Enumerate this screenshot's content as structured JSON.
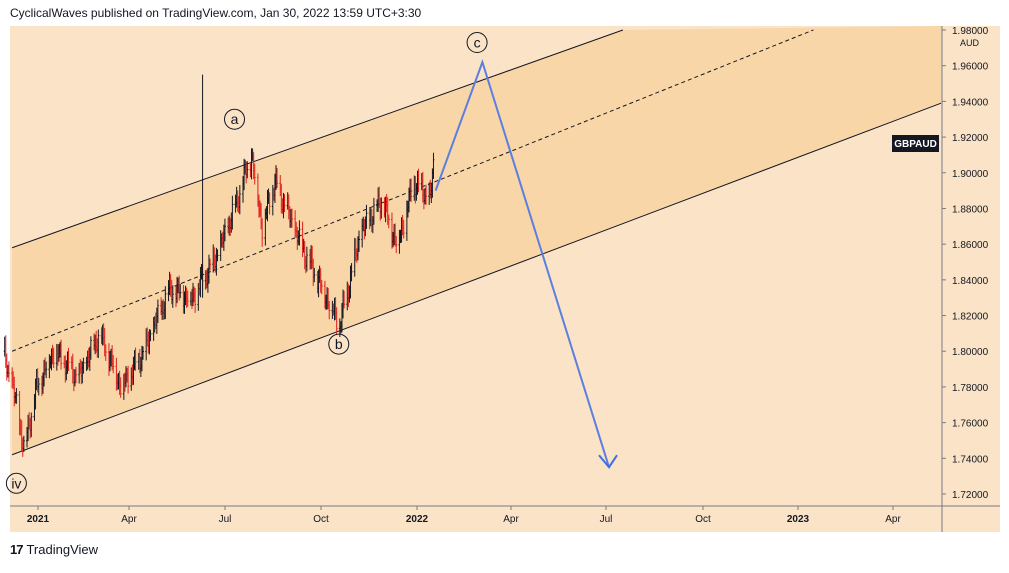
{
  "header": {
    "attribution": "CyclicalWaves published on TradingView.com, Jan 30, 2022 13:59 UTC+3:30"
  },
  "footer": {
    "logo_glyph": "17",
    "brand": "TradingView"
  },
  "colors": {
    "background": "#fbe3c7",
    "channel_fill": "#f9d6a8",
    "bull_candle": "#131722",
    "bear_candle": "#e0201d",
    "projection": "#5b7fe0",
    "projection_arrow": "#3d6ee6"
  },
  "chart_data": {
    "type": "candlestick",
    "symbol_label": "GBPAUD",
    "currency_label": "AUD",
    "ylim": [
      1.71,
      1.98
    ],
    "y_ticks": [
      "1.98000",
      "1.96000",
      "1.94000",
      "1.92000",
      "1.90000",
      "1.88000",
      "1.86000",
      "1.84000",
      "1.82000",
      "1.80000",
      "1.78000",
      "1.76000",
      "1.74000",
      "1.72000"
    ],
    "x_ticks": [
      {
        "label": "2021",
        "bold": true
      },
      {
        "label": "Apr",
        "bold": false
      },
      {
        "label": "Jul",
        "bold": false
      },
      {
        "label": "Oct",
        "bold": false
      },
      {
        "label": "2022",
        "bold": true
      },
      {
        "label": "Apr",
        "bold": false
      },
      {
        "label": "Jul",
        "bold": false
      },
      {
        "label": "Oct",
        "bold": false
      },
      {
        "label": "2023",
        "bold": true
      },
      {
        "label": "Apr",
        "bold": false
      }
    ],
    "price_path": [
      {
        "date": "2020-12-20",
        "price": 1.8
      },
      {
        "date": "2021-01-01",
        "price": 1.77
      },
      {
        "date": "2021-01-08",
        "price": 1.745
      },
      {
        "date": "2021-01-20",
        "price": 1.78
      },
      {
        "date": "2021-02-05",
        "price": 1.8
      },
      {
        "date": "2021-03-01",
        "price": 1.785
      },
      {
        "date": "2021-03-20",
        "price": 1.81
      },
      {
        "date": "2021-04-10",
        "price": 1.78
      },
      {
        "date": "2021-05-01",
        "price": 1.8
      },
      {
        "date": "2021-05-25",
        "price": 1.835
      },
      {
        "date": "2021-06-15",
        "price": 1.83
      },
      {
        "date": "2021-07-10",
        "price": 1.855
      },
      {
        "date": "2021-07-25",
        "price": 1.88
      },
      {
        "date": "2021-08-10",
        "price": 1.91
      },
      {
        "date": "2021-08-20",
        "price": 1.87
      },
      {
        "date": "2021-09-01",
        "price": 1.895
      },
      {
        "date": "2021-09-25",
        "price": 1.86
      },
      {
        "date": "2021-10-20",
        "price": 1.83
      },
      {
        "date": "2021-11-01",
        "price": 1.815
      },
      {
        "date": "2021-11-20",
        "price": 1.865
      },
      {
        "date": "2021-12-10",
        "price": 1.885
      },
      {
        "date": "2021-12-25",
        "price": 1.86
      },
      {
        "date": "2022-01-10",
        "price": 1.895
      },
      {
        "date": "2022-01-25",
        "price": 1.885
      },
      {
        "date": "2022-01-30",
        "price": 1.915
      }
    ],
    "spike": {
      "date": "2021-06-25",
      "high": 1.955,
      "low": 1.83
    },
    "channel": {
      "upper": [
        {
          "date": "2020-12-28",
          "price": 1.858
        },
        {
          "date": "2022-07-25",
          "price": 1.98
        }
      ],
      "lower": [
        {
          "date": "2020-12-28",
          "price": 1.742
        },
        {
          "date": "2023-05-20",
          "price": 1.939
        }
      ],
      "mid": [
        {
          "date": "2020-12-28",
          "price": 1.8
        },
        {
          "date": "2023-01-20",
          "price": 1.98
        }
      ]
    },
    "projection": [
      {
        "date": "2022-01-30",
        "price": 1.89
      },
      {
        "date": "2022-03-15",
        "price": 1.962
      },
      {
        "date": "2022-07-12",
        "price": 1.735
      }
    ],
    "wave_labels": [
      {
        "text": "iv",
        "date": "2021-01-01",
        "price": 1.726
      },
      {
        "text": "a",
        "date": "2021-07-25",
        "price": 1.93
      },
      {
        "text": "b",
        "date": "2021-10-31",
        "price": 1.804
      },
      {
        "text": "c",
        "date": "2022-03-10",
        "price": 1.973
      }
    ]
  }
}
